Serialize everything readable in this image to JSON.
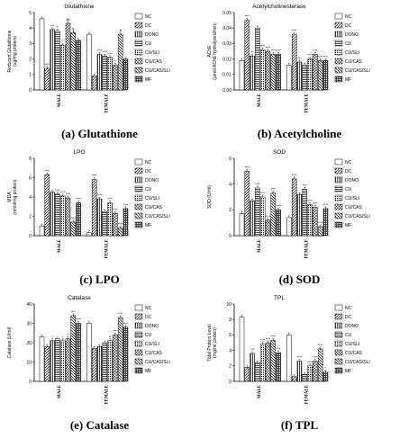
{
  "series_names": [
    "NC",
    "DC",
    "DONO",
    "CU",
    "CU/SLI",
    "CU/CAS",
    "CU/CAS/SLI",
    "MF"
  ],
  "groups": [
    "MALE",
    "FEMALE"
  ],
  "chart_data": [
    {
      "type": "bar",
      "title": "Glutathione",
      "ylabel": "Reduced Glutathione\n(ug/mg protein)",
      "ylim": [
        0,
        5
      ],
      "yticks": [
        "0",
        "1",
        "2",
        "3",
        "4",
        "5"
      ],
      "caption": "(a) Glutathione",
      "categories": [
        "MALE",
        "FEMALE"
      ],
      "series": [
        {
          "name": "NC",
          "values": [
            4.6,
            3.6
          ]
        },
        {
          "name": "DC",
          "values": [
            1.4,
            0.9
          ]
        },
        {
          "name": "DONO",
          "values": [
            3.9,
            2.3
          ]
        },
        {
          "name": "CU",
          "values": [
            3.8,
            2.2
          ]
        },
        {
          "name": "CU/SLI",
          "values": [
            2.9,
            2.1
          ]
        },
        {
          "name": "CU/CAS",
          "values": [
            4.3,
            1.6
          ]
        },
        {
          "name": "CU/CAS/SLI",
          "values": [
            3.7,
            3.6
          ]
        },
        {
          "name": "MF",
          "values": [
            3.2,
            2.0
          ]
        }
      ],
      "annotations": {
        "MALE": [
          "",
          "****",
          "***",
          "**",
          "*",
          "$$",
          "$",
          ""
        ],
        "FEMALE": [
          "",
          "",
          "****",
          "****",
          "****",
          "*",
          "$",
          ""
        ]
      }
    },
    {
      "type": "bar",
      "title": "Acetylcholinesterase",
      "ylabel": "AChE\n(µmol AChE hydrolyzed/min)",
      "ylim": [
        0,
        0.05
      ],
      "yticks": [
        "0.00",
        "0.01",
        "0.02",
        "0.03",
        "0.04",
        "0.05"
      ],
      "caption": "(b) Acetylcholine",
      "categories": [
        "MALE",
        "FEMALE"
      ],
      "series": [
        {
          "name": "NC",
          "values": [
            0.019,
            0.016
          ]
        },
        {
          "name": "DC",
          "values": [
            0.045,
            0.036
          ]
        },
        {
          "name": "DONO",
          "values": [
            0.022,
            0.018
          ]
        },
        {
          "name": "CU",
          "values": [
            0.04,
            0.016
          ]
        },
        {
          "name": "CU/SLI",
          "values": [
            0.026,
            0.02
          ]
        },
        {
          "name": "CU/CAS",
          "values": [
            0.025,
            0.023
          ]
        },
        {
          "name": "CU/CAS/SLI",
          "values": [
            0.023,
            0.019
          ]
        },
        {
          "name": "MF",
          "values": [
            0.023,
            0.019
          ]
        }
      ],
      "annotations": {
        "MALE": [
          "",
          "****",
          "**",
          "",
          "****",
          "****",
          "****",
          "****"
        ],
        "FEMALE": [
          "",
          "****",
          "***",
          "",
          "****",
          "****",
          "****",
          "****"
        ]
      }
    },
    {
      "type": "bar",
      "title": "LPO",
      "ylabel": "MDA\n(nmol/mg protein)",
      "ylim": [
        0,
        8
      ],
      "yticks": [
        "0",
        "2",
        "4",
        "6",
        "8"
      ],
      "caption": "(c) LPO",
      "categories": [
        "MALE",
        "FEMALE"
      ],
      "series": [
        {
          "name": "NC",
          "values": [
            1.0,
            0.3
          ]
        },
        {
          "name": "DC",
          "values": [
            6.3,
            5.8
          ]
        },
        {
          "name": "DONO",
          "values": [
            4.5,
            3.8
          ]
        },
        {
          "name": "CU",
          "values": [
            4.3,
            2.5
          ]
        },
        {
          "name": "CU/SLI",
          "values": [
            4.1,
            3.4
          ]
        },
        {
          "name": "CU/CAS",
          "values": [
            3.9,
            2.3
          ]
        },
        {
          "name": "CU/CAS/SLI",
          "values": [
            1.4,
            0.8
          ]
        },
        {
          "name": "MF",
          "values": [
            3.4,
            2.8
          ]
        }
      ],
      "annotations": {
        "MALE": [
          "",
          "****",
          "",
          "****",
          "****",
          "****",
          "****",
          "****"
        ],
        "FEMALE": [
          "",
          "****",
          "****",
          "",
          "****",
          "****",
          "****",
          "****"
        ]
      }
    },
    {
      "type": "bar",
      "title": "SOD",
      "ylabel": "SOD (U/ml)",
      "ylim": [
        0,
        6
      ],
      "yticks": [
        "0",
        "2",
        "4",
        "6"
      ],
      "caption": "(d) SOD",
      "categories": [
        "MALE",
        "FEMALE"
      ],
      "series": [
        {
          "name": "NC",
          "values": [
            1.7,
            1.4
          ]
        },
        {
          "name": "DC",
          "values": [
            5.0,
            4.4
          ]
        },
        {
          "name": "DONO",
          "values": [
            2.7,
            3.2
          ]
        },
        {
          "name": "CU",
          "values": [
            3.7,
            3.6
          ]
        },
        {
          "name": "CU/SLI",
          "values": [
            3.0,
            2.4
          ]
        },
        {
          "name": "CU/CAS",
          "values": [
            1.2,
            2.2
          ]
        },
        {
          "name": "CU/CAS/SLI",
          "values": [
            3.3,
            0.7
          ]
        },
        {
          "name": "MF",
          "values": [
            2.0,
            2.1
          ]
        }
      ],
      "annotations": {
        "MALE": [
          "",
          "****",
          "",
          "****",
          "****",
          "****",
          "****",
          "****"
        ],
        "FEMALE": [
          "",
          "****",
          "",
          "****",
          "****",
          "****",
          "****",
          "****"
        ]
      }
    },
    {
      "type": "bar",
      "title": "Catalase",
      "ylabel": "Catalase (U/ml)",
      "ylim": [
        0,
        40
      ],
      "yticks": [
        "0",
        "10",
        "20",
        "30",
        "40"
      ],
      "caption": "(e) Catalase",
      "categories": [
        "MALE",
        "FEMALE"
      ],
      "series": [
        {
          "name": "NC",
          "values": [
            23,
            30
          ]
        },
        {
          "name": "DC",
          "values": [
            18,
            17
          ]
        },
        {
          "name": "DONO",
          "values": [
            21,
            18
          ]
        },
        {
          "name": "CU",
          "values": [
            22,
            20
          ]
        },
        {
          "name": "CU/SLI",
          "values": [
            21,
            21
          ]
        },
        {
          "name": "CU/CAS",
          "values": [
            22,
            24
          ]
        },
        {
          "name": "CU/CAS/SLI",
          "values": [
            34,
            33
          ]
        },
        {
          "name": "MF",
          "values": [
            30,
            28
          ]
        }
      ],
      "annotations": {
        "MALE": [
          "",
          "",
          "*",
          "",
          "*",
          "**",
          "****",
          "****"
        ],
        "FEMALE": [
          "",
          "",
          "",
          "",
          "**",
          "****",
          "****",
          "****"
        ]
      }
    },
    {
      "type": "bar",
      "title": "TPL",
      "ylabel": "Total Protein Level\n(mg/ml protein)",
      "ylim": [
        0,
        10
      ],
      "yticks": [
        "0",
        "2",
        "4",
        "6",
        "8",
        "10"
      ],
      "caption": "(f) TPL",
      "categories": [
        "MALE",
        "FEMALE"
      ],
      "series": [
        {
          "name": "NC",
          "values": [
            8.3,
            6.0
          ]
        },
        {
          "name": "DC",
          "values": [
            1.8,
            0.6
          ]
        },
        {
          "name": "DONO",
          "values": [
            3.6,
            2.6
          ]
        },
        {
          "name": "CU",
          "values": [
            2.4,
            0.9
          ]
        },
        {
          "name": "CU/SLI",
          "values": [
            4.8,
            2.0
          ]
        },
        {
          "name": "CU/CAS",
          "values": [
            5.0,
            2.6
          ]
        },
        {
          "name": "CU/CAS/SLI",
          "values": [
            5.3,
            4.2
          ]
        },
        {
          "name": "MF",
          "values": [
            3.7,
            1.2
          ]
        }
      ],
      "annotations": {
        "MALE": [
          "",
          "",
          "***",
          "",
          "****",
          "****",
          "****",
          "***"
        ],
        "FEMALE": [
          "",
          "",
          "****",
          "",
          "****",
          "****",
          "****",
          "*"
        ]
      }
    }
  ]
}
